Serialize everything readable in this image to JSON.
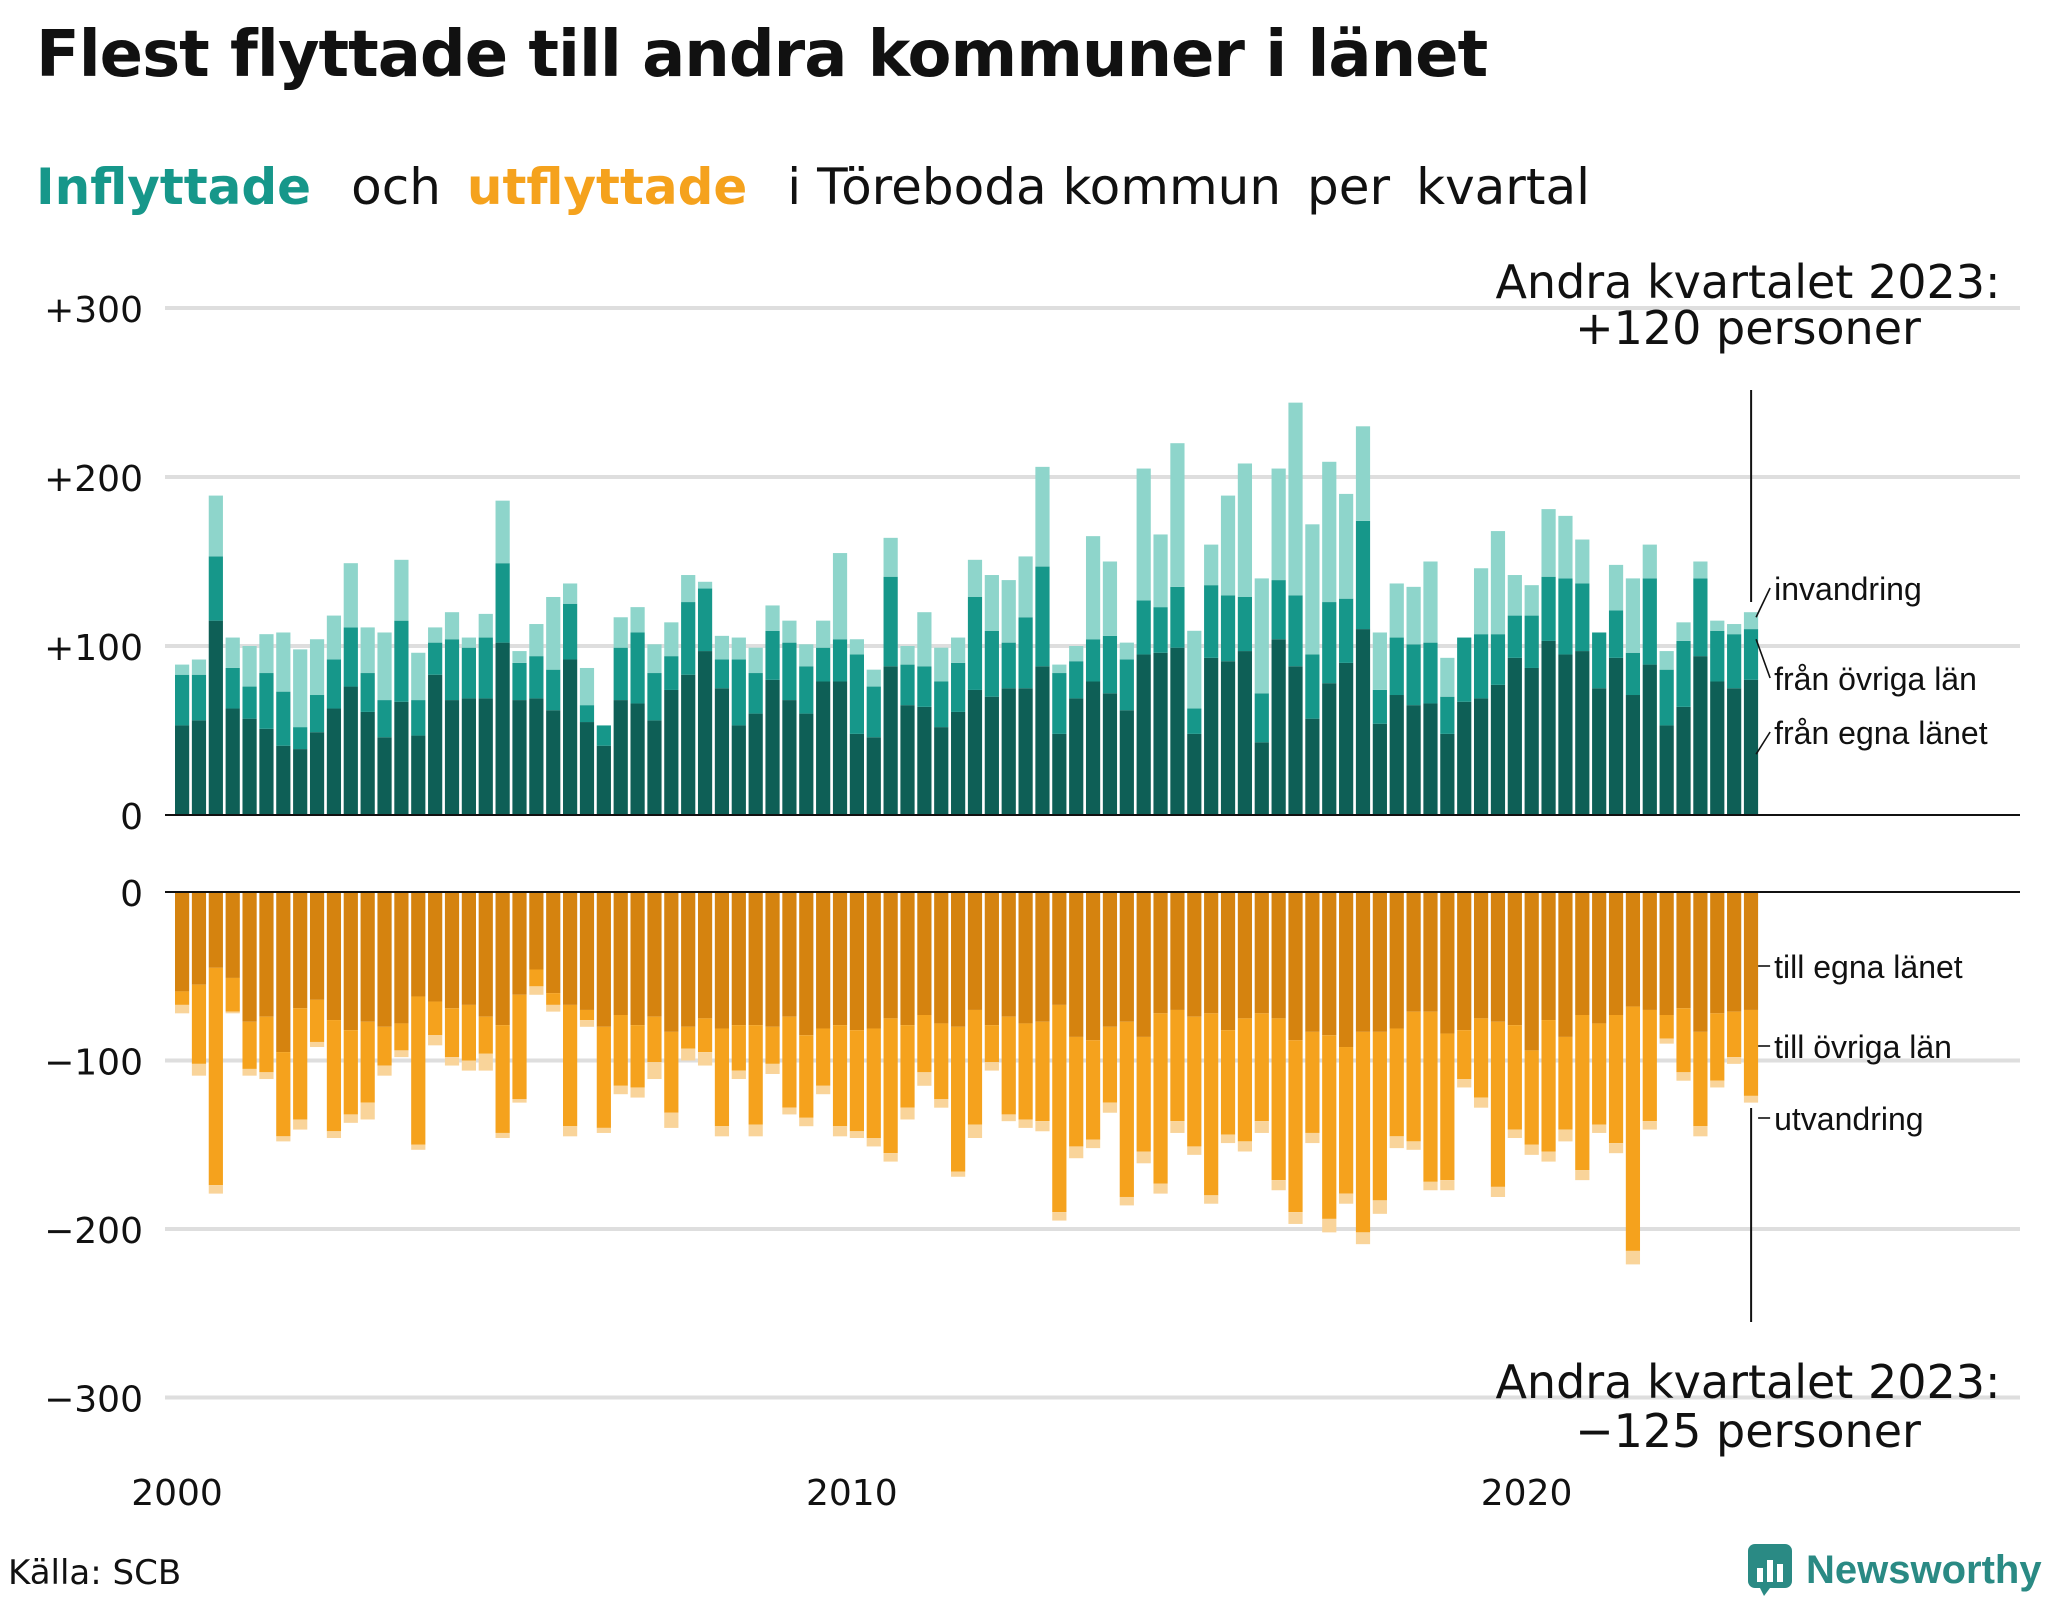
{
  "title": "Flest flyttade till andra kommuner i länet",
  "subtitle": {
    "inflow": "Inflyttade",
    "and": "och",
    "outflow": "utflyttade",
    "rest": "i Töreboda kommun",
    "per": "per",
    "period": "kvartal"
  },
  "source": "Källa: SCB",
  "brand": {
    "name": "Newsworthy",
    "icon": "newsworthy-logo-icon"
  },
  "colors": {
    "in_own": "#0e5f56",
    "in_other": "#16978a",
    "in_imm": "#8ed5cb",
    "out_own": "#d5830f",
    "out_other": "#f5a21d",
    "out_emig": "#f9d49a",
    "grid": "#dedede",
    "axis": "#111111"
  },
  "chart_data": {
    "type": "bar",
    "stacked": true,
    "diverging": true,
    "x_start": "2000-Q1",
    "x_end": "2023-Q2",
    "xtick_labels": [
      "2000",
      "2010",
      "2020"
    ],
    "panels": [
      {
        "name": "Inflyttade",
        "ylim": [
          0,
          300
        ],
        "yticks": [
          "0",
          "+100",
          "+200",
          "+300"
        ]
      },
      {
        "name": "utflyttade",
        "ylim": [
          -300,
          0
        ],
        "yticks": [
          "0",
          "−100",
          "−200",
          "−300"
        ]
      }
    ],
    "inflow_series": [
      {
        "name": "från egna länet",
        "values": [
          53,
          56,
          115,
          63,
          57,
          51,
          41,
          39,
          49,
          63,
          76,
          61,
          46,
          67,
          47,
          83,
          68,
          69,
          69,
          102,
          68,
          69,
          62,
          92,
          55,
          41,
          68,
          66,
          56,
          74,
          83,
          97,
          75,
          53,
          60,
          80,
          68,
          60,
          79,
          79,
          48,
          46,
          88,
          65,
          64,
          52,
          61,
          74,
          70,
          75,
          75,
          88,
          48,
          69,
          79,
          72,
          62,
          95,
          96,
          99,
          48,
          93,
          91,
          97,
          43,
          104,
          88,
          57,
          78,
          90,
          110,
          54,
          71,
          65,
          66,
          48,
          67,
          69,
          77,
          93,
          87,
          103,
          95,
          97,
          75,
          93,
          71,
          89,
          53,
          64,
          94,
          79,
          75,
          80
        ]
      },
      {
        "name": "från övriga län",
        "values": [
          30,
          27,
          38,
          24,
          19,
          33,
          32,
          13,
          22,
          29,
          35,
          23,
          22,
          48,
          21,
          19,
          36,
          30,
          36,
          47,
          22,
          25,
          24,
          33,
          10,
          12,
          31,
          42,
          28,
          20,
          43,
          37,
          17,
          39,
          24,
          29,
          34,
          28,
          20,
          25,
          47,
          30,
          53,
          24,
          24,
          27,
          29,
          55,
          39,
          27,
          42,
          59,
          36,
          22,
          25,
          34,
          30,
          32,
          27,
          36,
          15,
          43,
          39,
          32,
          29,
          35,
          42,
          38,
          48,
          38,
          64,
          20,
          34,
          36,
          36,
          22,
          38,
          38,
          30,
          25,
          31,
          38,
          45,
          40,
          33,
          28,
          25,
          51,
          33,
          39,
          46,
          30,
          32,
          30
        ]
      },
      {
        "name": "invandring",
        "values": [
          6,
          9,
          36,
          18,
          24,
          23,
          35,
          46,
          33,
          26,
          38,
          27,
          40,
          36,
          28,
          9,
          16,
          6,
          14,
          37,
          7,
          19,
          43,
          12,
          22,
          0,
          18,
          15,
          17,
          20,
          16,
          4,
          14,
          13,
          15,
          15,
          13,
          13,
          16,
          51,
          9,
          10,
          23,
          11,
          32,
          20,
          15,
          22,
          33,
          37,
          36,
          59,
          5,
          9,
          61,
          44,
          10,
          78,
          43,
          85,
          46,
          24,
          59,
          79,
          68,
          66,
          114,
          77,
          83,
          62,
          56,
          34,
          32,
          34,
          48,
          23,
          0,
          39,
          61,
          24,
          18,
          40,
          37,
          26,
          0,
          27,
          44,
          20,
          11,
          11,
          10,
          6,
          6,
          10
        ]
      }
    ],
    "outflow_series": [
      {
        "name": "till egna länet",
        "values": [
          -59,
          -55,
          -45,
          -51,
          -77,
          -74,
          -95,
          -69,
          -64,
          -76,
          -82,
          -77,
          -80,
          -78,
          -62,
          -65,
          -69,
          -67,
          -74,
          -79,
          -61,
          -46,
          -60,
          -67,
          -70,
          -80,
          -73,
          -79,
          -74,
          -83,
          -80,
          -75,
          -81,
          -79,
          -79,
          -80,
          -74,
          -85,
          -81,
          -79,
          -82,
          -81,
          -75,
          -79,
          -73,
          -78,
          -80,
          -70,
          -79,
          -74,
          -78,
          -77,
          -67,
          -86,
          -88,
          -80,
          -77,
          -86,
          -72,
          -70,
          -74,
          -72,
          -82,
          -75,
          -72,
          -75,
          -88,
          -83,
          -85,
          -92,
          -83,
          -83,
          -81,
          -71,
          -71,
          -84,
          -82,
          -75,
          -77,
          -79,
          -94,
          -76,
          -86,
          -73,
          -78,
          -73,
          -68,
          -70,
          -73,
          -69,
          -83,
          -72,
          -71,
          -70
        ]
      },
      {
        "name": "till övriga län",
        "values": [
          -8,
          -47,
          -129,
          -20,
          -28,
          -33,
          -50,
          -66,
          -25,
          -66,
          -50,
          -48,
          -23,
          -16,
          -88,
          -20,
          -29,
          -33,
          -22,
          -64,
          -62,
          -10,
          -7,
          -72,
          -6,
          -60,
          -42,
          -37,
          -27,
          -48,
          -13,
          -20,
          -58,
          -27,
          -59,
          -22,
          -54,
          -49,
          -34,
          -60,
          -60,
          -65,
          -80,
          -49,
          -34,
          -45,
          -86,
          -68,
          -22,
          -58,
          -57,
          -59,
          -123,
          -65,
          -59,
          -45,
          -104,
          -68,
          -101,
          -66,
          -77,
          -108,
          -62,
          -73,
          -64,
          -96,
          -102,
          -60,
          -109,
          -87,
          -119,
          -100,
          -64,
          -77,
          -101,
          -87,
          -29,
          -47,
          -98,
          -62,
          -56,
          -78,
          -55,
          -92,
          -60,
          -76,
          -145,
          -66,
          -14,
          -38,
          -56,
          -40,
          -27,
          -51
        ]
      },
      {
        "name": "utvandring",
        "values": [
          -5,
          -7,
          -5,
          -1,
          -4,
          -4,
          -3,
          -6,
          -3,
          -4,
          -5,
          -10,
          -6,
          -4,
          -3,
          -6,
          -5,
          -6,
          -10,
          -3,
          -2,
          -5,
          -4,
          -6,
          -4,
          -3,
          -5,
          -6,
          -10,
          -9,
          -7,
          -8,
          -6,
          -5,
          -7,
          -6,
          -4,
          -5,
          -5,
          -6,
          -4,
          -5,
          -5,
          -7,
          -8,
          -5,
          -3,
          -8,
          -5,
          -4,
          -5,
          -6,
          -5,
          -7,
          -5,
          -6,
          -5,
          -7,
          -6,
          -7,
          -5,
          -5,
          -5,
          -6,
          -7,
          -6,
          -7,
          -6,
          -8,
          -6,
          -7,
          -8,
          -7,
          -5,
          -5,
          -6,
          -5,
          -6,
          -6,
          -5,
          -6,
          -6,
          -7,
          -6,
          -5,
          -6,
          -8,
          -5,
          -3,
          -5,
          -6,
          -4,
          -4,
          -4
        ]
      }
    ],
    "last_labels_in": [
      "invandring",
      "från övriga län",
      "från egna länet"
    ],
    "last_labels_out": [
      "till egna länet",
      "till övriga län",
      "utvandring"
    ],
    "annotation_top": [
      "Andra kvartalet 2023:",
      "+120 personer"
    ],
    "annotation_bottom": [
      "Andra kvartalet 2023:",
      "−125 personer"
    ]
  }
}
